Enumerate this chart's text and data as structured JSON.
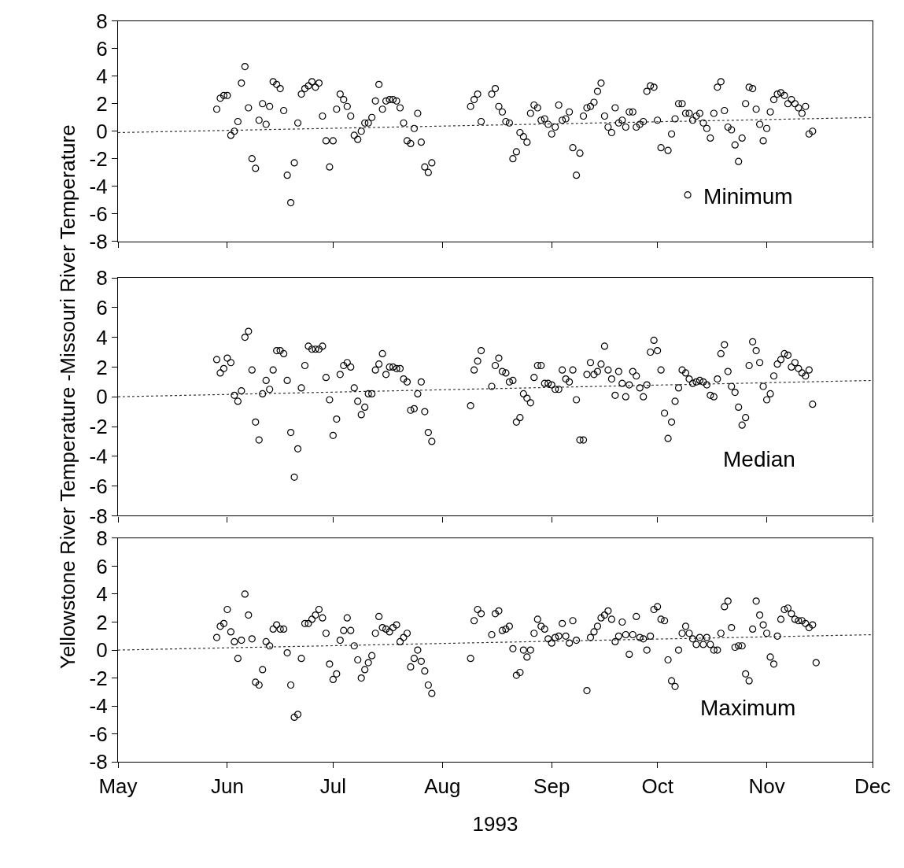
{
  "chart_data": [
    {
      "type": "scatter",
      "legend": "bottom right",
      "tick_labels": "y",
      "xlim": [
        "1993-05-01",
        "1993-12-01"
      ],
      "xticks": [
        {
          "value": "1993-05-01",
          "label": null
        },
        {
          "value": "1993-06-01",
          "label": null
        },
        {
          "value": "1993-07-01",
          "label": null
        },
        {
          "value": "1993-08-01",
          "label": null
        },
        {
          "value": "1993-09-01",
          "label": null
        },
        {
          "value": "1993-10-01",
          "label": null
        },
        {
          "value": "1993-11-01",
          "label": null
        },
        {
          "value": "1993-12-01",
          "label": null
        }
      ],
      "ylim": [
        -8,
        8
      ],
      "yticks": [
        -8,
        -6,
        -4,
        -2,
        0,
        2,
        4,
        6,
        8
      ],
      "series": [
        {
          "name": "Minimum",
          "marker": "circle",
          "color": "#000000",
          "x": [
            "1993-05-29",
            "1993-05-30",
            "1993-05-31",
            "1993-06-01",
            "1993-06-02",
            "1993-06-03",
            "1993-06-04",
            "1993-06-05",
            "1993-06-06",
            "1993-06-07",
            "1993-06-08",
            "1993-06-09",
            "1993-06-10",
            "1993-06-11",
            "1993-06-12",
            "1993-06-13",
            "1993-06-14",
            "1993-06-15",
            "1993-06-16",
            "1993-06-17",
            "1993-06-18",
            "1993-06-19",
            "1993-06-20",
            "1993-06-21",
            "1993-06-22",
            "1993-06-23",
            "1993-06-24",
            "1993-06-25",
            "1993-06-26",
            "1993-06-27",
            "1993-06-28",
            "1993-06-29",
            "1993-06-30",
            "1993-07-01",
            "1993-07-02",
            "1993-07-03",
            "1993-07-04",
            "1993-07-05",
            "1993-07-06",
            "1993-07-07",
            "1993-07-08",
            "1993-07-09",
            "1993-07-10",
            "1993-07-11",
            "1993-07-12",
            "1993-07-13",
            "1993-07-14",
            "1993-07-15",
            "1993-07-16",
            "1993-07-17",
            "1993-07-18",
            "1993-07-19",
            "1993-07-20",
            "1993-07-21",
            "1993-07-22",
            "1993-07-23",
            "1993-07-24",
            "1993-07-25",
            "1993-07-26",
            "1993-07-27",
            "1993-07-28",
            "1993-07-29",
            "1993-08-09",
            "1993-08-10",
            "1993-08-11",
            "1993-08-12",
            "1993-08-15",
            "1993-08-16",
            "1993-08-17",
            "1993-08-18",
            "1993-08-19",
            "1993-08-20",
            "1993-08-21",
            "1993-08-22",
            "1993-08-23",
            "1993-08-24",
            "1993-08-25",
            "1993-08-26",
            "1993-08-27",
            "1993-08-28",
            "1993-08-29",
            "1993-08-30",
            "1993-08-31",
            "1993-09-01",
            "1993-09-02",
            "1993-09-03",
            "1993-09-04",
            "1993-09-05",
            "1993-09-06",
            "1993-09-07",
            "1993-09-08",
            "1993-09-09",
            "1993-09-10",
            "1993-09-11",
            "1993-09-12",
            "1993-09-13",
            "1993-09-14",
            "1993-09-15",
            "1993-09-16",
            "1993-09-17",
            "1993-09-18",
            "1993-09-19",
            "1993-09-20",
            "1993-09-21",
            "1993-09-22",
            "1993-09-23",
            "1993-09-24",
            "1993-09-25",
            "1993-09-26",
            "1993-09-27",
            "1993-09-28",
            "1993-09-29",
            "1993-09-30",
            "1993-10-01",
            "1993-10-02",
            "1993-10-04",
            "1993-10-05",
            "1993-10-06",
            "1993-10-07",
            "1993-10-08",
            "1993-10-09",
            "1993-10-10",
            "1993-10-11",
            "1993-10-12",
            "1993-10-13",
            "1993-10-14",
            "1993-10-15",
            "1993-10-16",
            "1993-10-17",
            "1993-10-18",
            "1993-10-19",
            "1993-10-20",
            "1993-10-21",
            "1993-10-22",
            "1993-10-23",
            "1993-10-24",
            "1993-10-25",
            "1993-10-26",
            "1993-10-27",
            "1993-10-28",
            "1993-10-29",
            "1993-10-30",
            "1993-10-31",
            "1993-11-01",
            "1993-11-02",
            "1993-11-03",
            "1993-11-04",
            "1993-11-05",
            "1993-11-06",
            "1993-11-07",
            "1993-11-08",
            "1993-11-09",
            "1993-11-10",
            "1993-11-11",
            "1993-11-12",
            "1993-11-13",
            "1993-11-14"
          ],
          "values": [
            1.6,
            2.4,
            2.6,
            2.6,
            -0.3,
            0.0,
            0.7,
            3.5,
            4.7,
            1.7,
            -2.0,
            -2.7,
            0.8,
            2.0,
            0.5,
            1.8,
            3.6,
            3.4,
            3.1,
            1.5,
            -3.2,
            -5.2,
            -2.3,
            0.6,
            2.7,
            3.1,
            3.3,
            3.6,
            3.2,
            3.5,
            1.1,
            -0.7,
            -2.6,
            -0.7,
            1.6,
            2.7,
            2.3,
            1.8,
            1.1,
            -0.3,
            -0.6,
            0.0,
            0.6,
            0.6,
            1.0,
            2.2,
            3.4,
            1.6,
            2.2,
            2.3,
            2.3,
            2.2,
            1.7,
            0.6,
            -0.7,
            -0.9,
            0.2,
            1.3,
            -0.8,
            -2.6,
            -3.0,
            -2.3,
            1.8,
            2.3,
            2.7,
            0.7,
            2.7,
            3.1,
            1.8,
            1.4,
            0.7,
            0.6,
            -2.0,
            -1.5,
            -0.1,
            -0.4,
            -0.8,
            1.3,
            1.9,
            1.7,
            0.8,
            0.9,
            0.5,
            -0.2,
            0.3,
            1.9,
            0.8,
            0.9,
            1.4,
            -1.2,
            -3.2,
            -1.6,
            1.1,
            1.7,
            1.8,
            2.1,
            2.9,
            3.5,
            1.1,
            0.3,
            -0.1,
            1.7,
            0.6,
            0.8,
            0.3,
            1.4,
            1.4,
            0.3,
            0.5,
            0.7,
            2.9,
            3.3,
            3.2,
            0.8,
            -1.2,
            -1.4,
            -0.2,
            0.9,
            2.0,
            2.0,
            1.3,
            1.3,
            0.8,
            1.1,
            1.3,
            0.6,
            0.2,
            -0.5,
            1.3,
            3.2,
            3.6,
            1.5,
            0.3,
            0.1,
            -1.0,
            -2.2,
            -0.5,
            2.0,
            3.2,
            3.1,
            1.6,
            0.5,
            -0.7,
            0.2,
            1.4,
            2.3,
            2.7,
            2.8,
            2.6,
            2.0,
            2.3,
            2.0,
            1.7,
            1.3,
            1.8,
            -0.2,
            0.0
          ]
        },
        {
          "type": "line",
          "line_style": "dotted",
          "color": "#000000",
          "x": [
            "1993-05-01",
            "1993-12-01"
          ],
          "values": [
            -0.1,
            1.0
          ]
        }
      ]
    },
    {
      "type": "scatter",
      "tick_labels": "y",
      "ylabel": "Yellowstone River Temperature -Missouri River Temperature",
      "annotations": [
        "Median"
      ],
      "xlim": [
        "1993-05-01",
        "1993-12-01"
      ],
      "xticks": [
        {
          "value": "1993-05-01",
          "label": null
        },
        {
          "value": "1993-06-01",
          "label": null
        },
        {
          "value": "1993-07-01",
          "label": null
        },
        {
          "value": "1993-08-01",
          "label": null
        },
        {
          "value": "1993-09-01",
          "label": null
        },
        {
          "value": "1993-10-01",
          "label": null
        },
        {
          "value": "1993-11-01",
          "label": null
        },
        {
          "value": "1993-12-01",
          "label": null
        }
      ],
      "ylim": [
        -8,
        8
      ],
      "yticks": [
        -8,
        -6,
        -4,
        -2,
        0,
        2,
        4,
        6,
        8
      ],
      "series": [
        {
          "marker": "circle",
          "color": "#000000",
          "x": [
            "1993-05-29",
            "1993-05-30",
            "1993-05-31",
            "1993-06-01",
            "1993-06-02",
            "1993-06-03",
            "1993-06-04",
            "1993-06-05",
            "1993-06-06",
            "1993-06-07",
            "1993-06-08",
            "1993-06-09",
            "1993-06-10",
            "1993-06-11",
            "1993-06-12",
            "1993-06-13",
            "1993-06-14",
            "1993-06-15",
            "1993-06-16",
            "1993-06-17",
            "1993-06-18",
            "1993-06-19",
            "1993-06-20",
            "1993-06-21",
            "1993-06-22",
            "1993-06-23",
            "1993-06-24",
            "1993-06-25",
            "1993-06-26",
            "1993-06-27",
            "1993-06-28",
            "1993-06-29",
            "1993-06-30",
            "1993-07-01",
            "1993-07-02",
            "1993-07-03",
            "1993-07-04",
            "1993-07-05",
            "1993-07-06",
            "1993-07-07",
            "1993-07-08",
            "1993-07-09",
            "1993-07-10",
            "1993-07-11",
            "1993-07-12",
            "1993-07-13",
            "1993-07-14",
            "1993-07-15",
            "1993-07-16",
            "1993-07-17",
            "1993-07-18",
            "1993-07-19",
            "1993-07-20",
            "1993-07-21",
            "1993-07-22",
            "1993-07-23",
            "1993-07-24",
            "1993-07-25",
            "1993-07-26",
            "1993-07-27",
            "1993-07-28",
            "1993-07-29",
            "1993-08-09",
            "1993-08-10",
            "1993-08-11",
            "1993-08-12",
            "1993-08-15",
            "1993-08-16",
            "1993-08-17",
            "1993-08-18",
            "1993-08-19",
            "1993-08-20",
            "1993-08-21",
            "1993-08-22",
            "1993-08-23",
            "1993-08-24",
            "1993-08-25",
            "1993-08-26",
            "1993-08-27",
            "1993-08-28",
            "1993-08-29",
            "1993-08-30",
            "1993-08-31",
            "1993-09-01",
            "1993-09-02",
            "1993-09-03",
            "1993-09-04",
            "1993-09-05",
            "1993-09-06",
            "1993-09-07",
            "1993-09-08",
            "1993-09-09",
            "1993-09-10",
            "1993-09-11",
            "1993-09-12",
            "1993-09-13",
            "1993-09-14",
            "1993-09-15",
            "1993-09-16",
            "1993-09-17",
            "1993-09-18",
            "1993-09-19",
            "1993-09-20",
            "1993-09-21",
            "1993-09-22",
            "1993-09-23",
            "1993-09-24",
            "1993-09-25",
            "1993-09-26",
            "1993-09-27",
            "1993-09-28",
            "1993-09-29",
            "1993-09-30",
            "1993-10-01",
            "1993-10-02",
            "1993-10-03",
            "1993-10-04",
            "1993-10-05",
            "1993-10-06",
            "1993-10-07",
            "1993-10-08",
            "1993-10-09",
            "1993-10-10",
            "1993-10-11",
            "1993-10-12",
            "1993-10-13",
            "1993-10-14",
            "1993-10-15",
            "1993-10-16",
            "1993-10-17",
            "1993-10-18",
            "1993-10-19",
            "1993-10-20",
            "1993-10-21",
            "1993-10-22",
            "1993-10-23",
            "1993-10-24",
            "1993-10-25",
            "1993-10-26",
            "1993-10-27",
            "1993-10-28",
            "1993-10-29",
            "1993-10-30",
            "1993-10-31",
            "1993-11-01",
            "1993-11-02",
            "1993-11-03",
            "1993-11-04",
            "1993-11-05",
            "1993-11-06",
            "1993-11-07",
            "1993-11-08",
            "1993-11-09",
            "1993-11-10",
            "1993-11-11",
            "1993-11-12",
            "1993-11-13",
            "1993-11-14"
          ],
          "values": [
            2.5,
            1.6,
            1.9,
            2.6,
            2.3,
            0.1,
            -0.3,
            0.4,
            4.0,
            4.4,
            1.8,
            -1.7,
            -2.9,
            0.2,
            1.1,
            0.5,
            1.8,
            3.1,
            3.1,
            2.9,
            1.1,
            -2.4,
            -5.4,
            -3.5,
            0.6,
            2.1,
            3.4,
            3.2,
            3.2,
            3.2,
            3.4,
            1.3,
            -0.2,
            -2.6,
            -1.5,
            1.5,
            2.1,
            2.3,
            2.0,
            0.6,
            -0.3,
            -1.2,
            -0.7,
            0.2,
            0.2,
            1.8,
            2.2,
            2.9,
            1.5,
            2.0,
            2.0,
            1.9,
            1.9,
            1.2,
            1.0,
            -0.9,
            -0.8,
            0.2,
            1.0,
            -1.0,
            -2.4,
            -3.0,
            -0.6,
            1.8,
            2.4,
            3.1,
            0.7,
            2.1,
            2.6,
            1.7,
            1.6,
            1.0,
            1.1,
            -1.7,
            -1.4,
            0.2,
            -0.1,
            -0.4,
            1.3,
            2.1,
            2.1,
            0.9,
            0.9,
            0.8,
            0.5,
            0.5,
            1.8,
            1.2,
            1.0,
            1.8,
            -0.2,
            -2.9,
            -2.9,
            1.5,
            2.3,
            1.5,
            1.7,
            2.2,
            3.4,
            1.8,
            1.2,
            0.1,
            1.7,
            0.9,
            0.0,
            0.8,
            1.7,
            1.4,
            0.6,
            0.0,
            0.8,
            3.0,
            3.8,
            3.1,
            1.8,
            -1.1,
            -2.8,
            -1.7,
            -0.3,
            0.6,
            1.8,
            1.6,
            1.2,
            0.9,
            1.0,
            1.1,
            1.0,
            0.8,
            0.1,
            0.0,
            1.2,
            2.9,
            3.5,
            1.7,
            0.7,
            0.3,
            -0.7,
            -1.9,
            -1.4,
            2.1,
            3.7,
            3.1,
            2.3,
            0.7,
            -0.2,
            0.2,
            1.4,
            2.2,
            2.5,
            2.9,
            2.8,
            2.0,
            2.3,
            1.9,
            1.6,
            1.4,
            1.8,
            -0.5
          ]
        },
        {
          "type": "line",
          "line_style": "dotted",
          "color": "#000000",
          "x": [
            "1993-05-01",
            "1993-12-01"
          ],
          "values": [
            0.0,
            1.1
          ]
        }
      ]
    },
    {
      "type": "scatter",
      "xlabel": "1993",
      "annotations": [
        "Maximum"
      ],
      "xlim": [
        "1993-05-01",
        "1993-12-01"
      ],
      "xticks": [
        {
          "value": "1993-05-01",
          "label": "May"
        },
        {
          "value": "1993-06-01",
          "label": "Jun"
        },
        {
          "value": "1993-07-01",
          "label": "Jul"
        },
        {
          "value": "1993-08-01",
          "label": "Aug"
        },
        {
          "value": "1993-09-01",
          "label": "Sep"
        },
        {
          "value": "1993-10-01",
          "label": "Oct"
        },
        {
          "value": "1993-11-01",
          "label": "Nov"
        },
        {
          "value": "1993-12-01",
          "label": "Dec"
        }
      ],
      "ylim": [
        -8,
        8
      ],
      "yticks": [
        -8,
        -6,
        -4,
        -2,
        0,
        2,
        4,
        6,
        8
      ],
      "series": [
        {
          "marker": "circle",
          "color": "#000000",
          "x": [
            "1993-05-29",
            "1993-05-30",
            "1993-05-31",
            "1993-06-01",
            "1993-06-02",
            "1993-06-03",
            "1993-06-04",
            "1993-06-05",
            "1993-06-06",
            "1993-06-07",
            "1993-06-08",
            "1993-06-09",
            "1993-06-10",
            "1993-06-11",
            "1993-06-12",
            "1993-06-13",
            "1993-06-14",
            "1993-06-15",
            "1993-06-16",
            "1993-06-17",
            "1993-06-18",
            "1993-06-19",
            "1993-06-20",
            "1993-06-21",
            "1993-06-22",
            "1993-06-23",
            "1993-06-24",
            "1993-06-25",
            "1993-06-26",
            "1993-06-27",
            "1993-06-28",
            "1993-06-29",
            "1993-06-30",
            "1993-07-01",
            "1993-07-02",
            "1993-07-03",
            "1993-07-04",
            "1993-07-05",
            "1993-07-06",
            "1993-07-07",
            "1993-07-08",
            "1993-07-09",
            "1993-07-10",
            "1993-07-11",
            "1993-07-12",
            "1993-07-13",
            "1993-07-14",
            "1993-07-15",
            "1993-07-16",
            "1993-07-17",
            "1993-07-18",
            "1993-07-19",
            "1993-07-20",
            "1993-07-21",
            "1993-07-22",
            "1993-07-23",
            "1993-07-24",
            "1993-07-25",
            "1993-07-26",
            "1993-07-27",
            "1993-07-28",
            "1993-07-29",
            "1993-08-09",
            "1993-08-10",
            "1993-08-11",
            "1993-08-12",
            "1993-08-15",
            "1993-08-16",
            "1993-08-17",
            "1993-08-18",
            "1993-08-19",
            "1993-08-20",
            "1993-08-21",
            "1993-08-22",
            "1993-08-23",
            "1993-08-24",
            "1993-08-25",
            "1993-08-26",
            "1993-08-27",
            "1993-08-28",
            "1993-08-29",
            "1993-08-30",
            "1993-08-31",
            "1993-09-01",
            "1993-09-02",
            "1993-09-03",
            "1993-09-04",
            "1993-09-05",
            "1993-09-06",
            "1993-09-07",
            "1993-09-08",
            "1993-09-11",
            "1993-09-12",
            "1993-09-13",
            "1993-09-14",
            "1993-09-15",
            "1993-09-16",
            "1993-09-17",
            "1993-09-18",
            "1993-09-19",
            "1993-09-20",
            "1993-09-21",
            "1993-09-22",
            "1993-09-23",
            "1993-09-24",
            "1993-09-25",
            "1993-09-26",
            "1993-09-27",
            "1993-09-28",
            "1993-09-29",
            "1993-09-30",
            "1993-10-01",
            "1993-10-02",
            "1993-10-03",
            "1993-10-04",
            "1993-10-05",
            "1993-10-06",
            "1993-10-07",
            "1993-10-08",
            "1993-10-09",
            "1993-10-10",
            "1993-10-11",
            "1993-10-12",
            "1993-10-13",
            "1993-10-14",
            "1993-10-15",
            "1993-10-16",
            "1993-10-17",
            "1993-10-18",
            "1993-10-19",
            "1993-10-20",
            "1993-10-21",
            "1993-10-22",
            "1993-10-23",
            "1993-10-24",
            "1993-10-25",
            "1993-10-26",
            "1993-10-27",
            "1993-10-28",
            "1993-10-29",
            "1993-10-30",
            "1993-10-31",
            "1993-11-01",
            "1993-11-02",
            "1993-11-03",
            "1993-11-04",
            "1993-11-05",
            "1993-11-06",
            "1993-11-07",
            "1993-11-08",
            "1993-11-09",
            "1993-11-10",
            "1993-11-11",
            "1993-11-12",
            "1993-11-13",
            "1993-11-14",
            "1993-11-15"
          ],
          "values": [
            0.9,
            1.7,
            1.9,
            2.9,
            1.3,
            0.6,
            -0.6,
            0.7,
            4.0,
            2.5,
            0.8,
            -2.3,
            -2.5,
            -1.4,
            0.6,
            0.3,
            1.5,
            1.8,
            1.5,
            1.5,
            -0.2,
            -2.5,
            -4.8,
            -4.6,
            -0.6,
            1.9,
            1.9,
            2.2,
            2.5,
            2.9,
            2.3,
            1.2,
            -1.0,
            -2.1,
            -1.7,
            0.7,
            1.4,
            2.3,
            1.4,
            0.3,
            -0.7,
            -2.0,
            -1.4,
            -0.9,
            -0.4,
            1.2,
            2.4,
            1.6,
            1.5,
            1.3,
            1.6,
            1.8,
            0.6,
            0.9,
            1.2,
            -1.2,
            -0.6,
            0.0,
            -0.8,
            -1.5,
            -2.5,
            -3.1,
            -0.6,
            2.1,
            2.9,
            2.6,
            1.1,
            2.6,
            2.8,
            1.4,
            1.5,
            1.7,
            0.1,
            -1.8,
            -1.6,
            0.0,
            -0.5,
            0.0,
            1.2,
            2.2,
            1.7,
            1.5,
            0.8,
            0.5,
            0.9,
            1.0,
            1.9,
            1.0,
            0.5,
            2.1,
            0.7,
            -2.9,
            0.9,
            1.3,
            1.7,
            2.3,
            2.5,
            2.8,
            2.2,
            0.6,
            1.0,
            2.0,
            1.1,
            -0.3,
            1.1,
            2.4,
            0.9,
            0.8,
            0.0,
            1.0,
            2.9,
            3.1,
            2.2,
            2.1,
            -0.7,
            -2.2,
            -2.6,
            0.0,
            1.2,
            1.7,
            1.2,
            0.8,
            0.4,
            0.9,
            0.4,
            0.9,
            0.4,
            0.0,
            0.0,
            1.2,
            3.1,
            3.5,
            1.6,
            0.2,
            0.3,
            0.3,
            -1.7,
            -2.2,
            1.5,
            3.5,
            2.5,
            1.8,
            1.2,
            -0.5,
            -1.0,
            1.0,
            2.2,
            2.9,
            3.0,
            2.6,
            2.2,
            2.1,
            2.1,
            1.9,
            1.6,
            1.8,
            -0.9
          ]
        },
        {
          "type": "line",
          "line_style": "dotted",
          "color": "#000000",
          "x": [
            "1993-05-01",
            "1993-12-01"
          ],
          "values": [
            0.0,
            1.1
          ]
        }
      ]
    }
  ]
}
